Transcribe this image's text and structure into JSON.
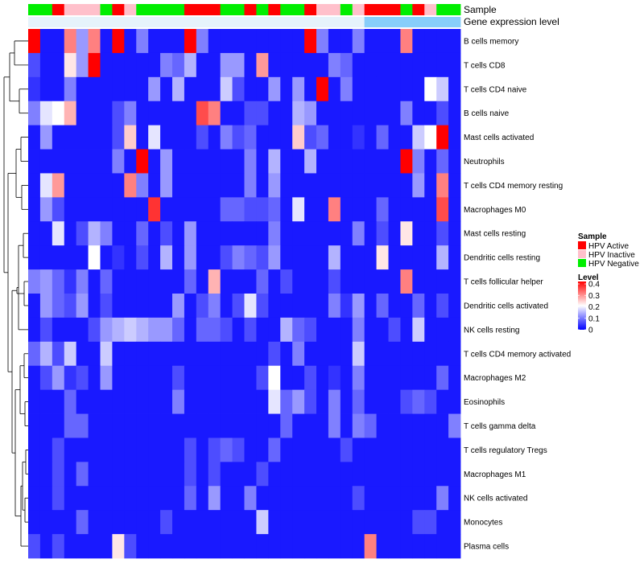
{
  "chart_data": {
    "type": "heatmap",
    "title": "",
    "xlabel": "",
    "ylabel": "",
    "annotations": [
      {
        "name": "Sample",
        "values": [
          "HPV Negative",
          "HPV Negative",
          "HPV Active",
          "HPV Inactive",
          "HPV Inactive",
          "HPV Inactive",
          "HPV Negative",
          "HPV Active",
          "HPV Inactive",
          "HPV Negative",
          "HPV Negative",
          "HPV Negative",
          "HPV Negative",
          "HPV Active",
          "HPV Active",
          "HPV Active",
          "HPV Negative",
          "HPV Negative",
          "HPV Active",
          "HPV Negative",
          "HPV Active",
          "HPV Negative",
          "HPV Negative",
          "HPV Active",
          "HPV Inactive",
          "HPV Inactive",
          "HPV Negative",
          "HPV Inactive",
          "HPV Active",
          "HPV Active",
          "HPV Active",
          "HPV Negative",
          "HPV Active",
          "HPV Inactive",
          "HPV Negative",
          "HPV Negative"
        ]
      },
      {
        "name": "Gene expression level",
        "values": [
          "low",
          "low",
          "low",
          "low",
          "low",
          "low",
          "low",
          "low",
          "low",
          "low",
          "low",
          "low",
          "low",
          "low",
          "low",
          "low",
          "low",
          "low",
          "low",
          "low",
          "low",
          "low",
          "low",
          "low",
          "low",
          "low",
          "low",
          "low",
          "high",
          "high",
          "high",
          "high",
          "high",
          "high",
          "high",
          "high"
        ]
      }
    ],
    "legend_sample": {
      "title": "Sample",
      "entries": [
        {
          "label": "HPV Active",
          "color": "#ff0000"
        },
        {
          "label": "HPV Inactive",
          "color": "#ffc0cb"
        },
        {
          "label": "HPV Negative",
          "color": "#00ee00"
        }
      ]
    },
    "gene_expression_colors": {
      "low": "#e6f3fb",
      "high": "#87cefa"
    },
    "legend_level": {
      "title": "Level",
      "ticks": [
        "0.4",
        "0.3",
        "0.2",
        "0.1",
        "0"
      ],
      "range": [
        0,
        0.4
      ],
      "colors": {
        "low": "#0000ff",
        "mid": "#ffffff",
        "high": "#ff0000"
      }
    },
    "rows": [
      "B cells memory",
      "T cells CD8",
      "T cells CD4 naive",
      "B cells naive",
      "Mast cells activated",
      "Neutrophils",
      "T cells CD4 memory resting",
      "Macrophages M0",
      "Mast cells resting",
      "Dendritic cells resting",
      "T cells follicular helper",
      "Dendritic cells activated",
      "NK cells resting",
      "T cells CD4 memory activated",
      "Macrophages M2",
      "Eosinophils",
      "T cells gamma delta",
      "T cells regulatory  Tregs",
      "Macrophages M1",
      "NK cells activated",
      "Monocytes",
      "Plasma cells"
    ],
    "values": [
      [
        0.4,
        0.02,
        0.02,
        0.3,
        0.12,
        0.3,
        0.02,
        0.4,
        0.02,
        0.1,
        0.02,
        0.02,
        0.02,
        0.4,
        0.1,
        0.02,
        0.02,
        0.02,
        0.02,
        0.02,
        0.02,
        0.02,
        0.02,
        0.4,
        0.1,
        0.02,
        0.02,
        0.1,
        0.02,
        0.02,
        0.02,
        0.3,
        0.02,
        0.02,
        0.02,
        0.02
      ],
      [
        0.06,
        0.02,
        0.02,
        0.22,
        0.12,
        0.4,
        0.02,
        0.02,
        0.02,
        0.02,
        0.02,
        0.1,
        0.08,
        0.14,
        0.02,
        0.02,
        0.12,
        0.12,
        0.02,
        0.28,
        0.02,
        0.02,
        0.02,
        0.02,
        0.02,
        0.1,
        0.08,
        0.02,
        0.02,
        0.02,
        0.02,
        0.02,
        0.02,
        0.02,
        0.02,
        0.02
      ],
      [
        0.04,
        0.02,
        0.02,
        0.1,
        0.02,
        0.02,
        0.02,
        0.02,
        0.02,
        0.02,
        0.12,
        0.02,
        0.14,
        0.02,
        0.02,
        0.02,
        0.16,
        0.06,
        0.02,
        0.02,
        0.12,
        0.02,
        0.12,
        0.02,
        0.4,
        0.02,
        0.1,
        0.02,
        0.02,
        0.02,
        0.02,
        0.02,
        0.02,
        0.2,
        0.16,
        0.02
      ],
      [
        0.1,
        0.18,
        0.2,
        0.26,
        0.02,
        0.02,
        0.02,
        0.06,
        0.1,
        0.02,
        0.02,
        0.02,
        0.02,
        0.02,
        0.34,
        0.3,
        0.02,
        0.02,
        0.06,
        0.06,
        0.02,
        0.02,
        0.14,
        0.12,
        0.02,
        0.02,
        0.02,
        0.02,
        0.02,
        0.02,
        0.02,
        0.1,
        0.02,
        0.02,
        0.06,
        0.02
      ],
      [
        0.02,
        0.12,
        0.02,
        0.02,
        0.02,
        0.02,
        0.02,
        0.06,
        0.24,
        0.02,
        0.18,
        0.02,
        0.02,
        0.02,
        0.06,
        0.02,
        0.1,
        0.06,
        0.08,
        0.02,
        0.02,
        0.02,
        0.24,
        0.06,
        0.08,
        0.02,
        0.02,
        0.04,
        0.02,
        0.08,
        0.02,
        0.02,
        0.16,
        0.2,
        0.4,
        0.02
      ],
      [
        0.02,
        0.02,
        0.02,
        0.02,
        0.02,
        0.02,
        0.02,
        0.1,
        0.02,
        0.4,
        0.02,
        0.12,
        0.02,
        0.02,
        0.02,
        0.02,
        0.02,
        0.02,
        0.1,
        0.02,
        0.14,
        0.02,
        0.02,
        0.14,
        0.02,
        0.02,
        0.02,
        0.02,
        0.02,
        0.02,
        0.02,
        0.4,
        0.1,
        0.02,
        0.08,
        0.02
      ],
      [
        0.02,
        0.18,
        0.28,
        0.02,
        0.02,
        0.02,
        0.02,
        0.02,
        0.3,
        0.1,
        0.02,
        0.12,
        0.02,
        0.02,
        0.02,
        0.02,
        0.02,
        0.02,
        0.1,
        0.02,
        0.12,
        0.02,
        0.02,
        0.02,
        0.02,
        0.02,
        0.02,
        0.02,
        0.02,
        0.02,
        0.02,
        0.02,
        0.12,
        0.02,
        0.3,
        0.02
      ],
      [
        0.02,
        0.12,
        0.06,
        0.02,
        0.02,
        0.02,
        0.02,
        0.02,
        0.02,
        0.02,
        0.36,
        0.02,
        0.02,
        0.02,
        0.02,
        0.02,
        0.08,
        0.08,
        0.06,
        0.06,
        0.08,
        0.02,
        0.18,
        0.02,
        0.02,
        0.3,
        0.02,
        0.02,
        0.02,
        0.08,
        0.02,
        0.02,
        0.02,
        0.02,
        0.34,
        0.02
      ],
      [
        0.02,
        0.02,
        0.18,
        0.02,
        0.06,
        0.14,
        0.1,
        0.02,
        0.02,
        0.08,
        0.02,
        0.06,
        0.02,
        0.12,
        0.02,
        0.02,
        0.02,
        0.02,
        0.02,
        0.02,
        0.1,
        0.02,
        0.02,
        0.02,
        0.02,
        0.02,
        0.02,
        0.1,
        0.02,
        0.06,
        0.02,
        0.22,
        0.02,
        0.02,
        0.06,
        0.02
      ],
      [
        0.02,
        0.02,
        0.02,
        0.02,
        0.02,
        0.2,
        0.02,
        0.04,
        0.02,
        0.06,
        0.02,
        0.14,
        0.02,
        0.12,
        0.02,
        0.02,
        0.06,
        0.1,
        0.08,
        0.06,
        0.12,
        0.02,
        0.02,
        0.02,
        0.02,
        0.14,
        0.02,
        0.02,
        0.02,
        0.22,
        0.02,
        0.02,
        0.02,
        0.02,
        0.14,
        0.02
      ],
      [
        0.1,
        0.12,
        0.08,
        0.04,
        0.1,
        0.02,
        0.08,
        0.02,
        0.02,
        0.02,
        0.02,
        0.02,
        0.02,
        0.08,
        0.02,
        0.26,
        0.02,
        0.02,
        0.02,
        0.08,
        0.02,
        0.06,
        0.02,
        0.02,
        0.02,
        0.06,
        0.02,
        0.02,
        0.02,
        0.02,
        0.02,
        0.3,
        0.02,
        0.02,
        0.02,
        0.02
      ],
      [
        0.02,
        0.12,
        0.08,
        0.06,
        0.12,
        0.02,
        0.06,
        0.02,
        0.02,
        0.02,
        0.02,
        0.02,
        0.12,
        0.02,
        0.06,
        0.1,
        0.02,
        0.06,
        0.18,
        0.06,
        0.02,
        0.02,
        0.02,
        0.02,
        0.02,
        0.1,
        0.04,
        0.12,
        0.02,
        0.08,
        0.02,
        0.02,
        0.08,
        0.02,
        0.06,
        0.02
      ],
      [
        0.02,
        0.06,
        0.02,
        0.02,
        0.02,
        0.06,
        0.12,
        0.14,
        0.16,
        0.14,
        0.12,
        0.12,
        0.08,
        0.02,
        0.08,
        0.08,
        0.06,
        0.02,
        0.06,
        0.02,
        0.02,
        0.14,
        0.08,
        0.06,
        0.02,
        0.02,
        0.02,
        0.1,
        0.02,
        0.02,
        0.06,
        0.02,
        0.16,
        0.02,
        0.02,
        0.02
      ],
      [
        0.08,
        0.14,
        0.06,
        0.16,
        0.02,
        0.02,
        0.16,
        0.02,
        0.02,
        0.02,
        0.02,
        0.02,
        0.02,
        0.02,
        0.02,
        0.02,
        0.02,
        0.02,
        0.02,
        0.02,
        0.06,
        0.02,
        0.1,
        0.02,
        0.02,
        0.02,
        0.02,
        0.16,
        0.02,
        0.02,
        0.02,
        0.02,
        0.02,
        0.02,
        0.02,
        0.02
      ],
      [
        0.02,
        0.06,
        0.12,
        0.04,
        0.06,
        0.02,
        0.12,
        0.02,
        0.02,
        0.02,
        0.02,
        0.02,
        0.06,
        0.02,
        0.02,
        0.02,
        0.02,
        0.02,
        0.02,
        0.06,
        0.2,
        0.02,
        0.02,
        0.06,
        0.02,
        0.04,
        0.02,
        0.1,
        0.02,
        0.02,
        0.02,
        0.02,
        0.02,
        0.02,
        0.08,
        0.02
      ],
      [
        0.02,
        0.02,
        0.02,
        0.08,
        0.02,
        0.02,
        0.02,
        0.02,
        0.02,
        0.02,
        0.02,
        0.02,
        0.1,
        0.02,
        0.02,
        0.02,
        0.02,
        0.02,
        0.02,
        0.02,
        0.18,
        0.08,
        0.12,
        0.06,
        0.02,
        0.1,
        0.02,
        0.08,
        0.02,
        0.02,
        0.02,
        0.06,
        0.08,
        0.06,
        0.02,
        0.02
      ],
      [
        0.02,
        0.02,
        0.02,
        0.08,
        0.08,
        0.02,
        0.02,
        0.02,
        0.02,
        0.02,
        0.02,
        0.02,
        0.02,
        0.02,
        0.02,
        0.02,
        0.02,
        0.02,
        0.02,
        0.02,
        0.02,
        0.08,
        0.02,
        0.02,
        0.02,
        0.1,
        0.02,
        0.1,
        0.08,
        0.02,
        0.02,
        0.02,
        0.02,
        0.02,
        0.02,
        0.1
      ],
      [
        0.02,
        0.02,
        0.06,
        0.02,
        0.02,
        0.02,
        0.02,
        0.02,
        0.02,
        0.02,
        0.02,
        0.02,
        0.02,
        0.06,
        0.02,
        0.06,
        0.08,
        0.06,
        0.02,
        0.02,
        0.08,
        0.02,
        0.02,
        0.02,
        0.02,
        0.02,
        0.06,
        0.02,
        0.02,
        0.02,
        0.02,
        0.02,
        0.02,
        0.02,
        0.02,
        0.02
      ],
      [
        0.02,
        0.02,
        0.06,
        0.02,
        0.08,
        0.02,
        0.02,
        0.02,
        0.02,
        0.02,
        0.02,
        0.02,
        0.02,
        0.06,
        0.02,
        0.06,
        0.02,
        0.02,
        0.02,
        0.06,
        0.02,
        0.02,
        0.02,
        0.02,
        0.02,
        0.02,
        0.02,
        0.02,
        0.02,
        0.02,
        0.02,
        0.02,
        0.02,
        0.02,
        0.02,
        0.02
      ],
      [
        0.02,
        0.02,
        0.06,
        0.02,
        0.02,
        0.02,
        0.02,
        0.02,
        0.02,
        0.02,
        0.02,
        0.02,
        0.02,
        0.08,
        0.02,
        0.12,
        0.02,
        0.02,
        0.1,
        0.02,
        0.02,
        0.02,
        0.02,
        0.02,
        0.02,
        0.02,
        0.02,
        0.06,
        0.02,
        0.02,
        0.02,
        0.02,
        0.02,
        0.02,
        0.1,
        0.02
      ],
      [
        0.02,
        0.02,
        0.02,
        0.02,
        0.08,
        0.02,
        0.02,
        0.02,
        0.02,
        0.02,
        0.02,
        0.06,
        0.02,
        0.02,
        0.02,
        0.02,
        0.02,
        0.02,
        0.02,
        0.16,
        0.02,
        0.02,
        0.02,
        0.02,
        0.02,
        0.02,
        0.02,
        0.02,
        0.02,
        0.02,
        0.02,
        0.02,
        0.06,
        0.06,
        0.02,
        0.02
      ],
      [
        0.06,
        0.02,
        0.06,
        0.02,
        0.02,
        0.02,
        0.02,
        0.22,
        0.06,
        0.02,
        0.02,
        0.02,
        0.02,
        0.02,
        0.02,
        0.02,
        0.02,
        0.02,
        0.02,
        0.02,
        0.02,
        0.02,
        0.02,
        0.02,
        0.02,
        0.02,
        0.02,
        0.02,
        0.3,
        0.02,
        0.02,
        0.02,
        0.02,
        0.02,
        0.02,
        0.02
      ]
    ]
  }
}
